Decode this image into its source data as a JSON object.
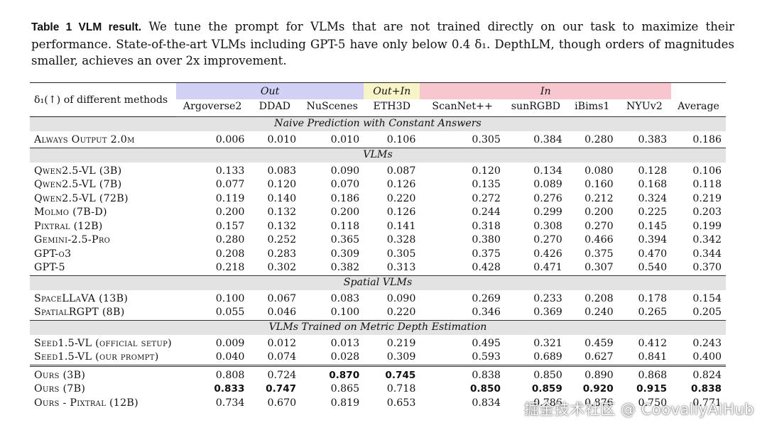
{
  "caption": {
    "label": "Table 1  VLM result.",
    "text": " We tune the prompt for VLMs that are not trained directly on our task to maximize their performance. State-of-the-art VLMs including GPT-5 have only below 0.4 δ₁. DepthLM, though orders of magnitudes smaller, achieves an over 2x improvement."
  },
  "table": {
    "corner_header": "δ₁(↑) of different methods",
    "groups": {
      "out": "Out",
      "mid": "Out+In",
      "in": "In"
    },
    "columns": [
      "Argoverse2",
      "DDAD",
      "NuScenes",
      "ETH3D",
      "ScanNet++",
      "sunRGBD",
      "iBims1",
      "NYUv2",
      "Average"
    ],
    "sections": [
      {
        "title": "Naive Prediction with Constant Answers",
        "rows": [
          {
            "name": "Always Output 2.0m",
            "values": [
              "0.006",
              "0.010",
              "0.010",
              "0.106",
              "0.305",
              "0.384",
              "0.280",
              "0.383",
              "0.186"
            ]
          }
        ]
      },
      {
        "title": "VLMs",
        "rows": [
          {
            "name": "Qwen2.5-VL (3B)",
            "values": [
              "0.133",
              "0.083",
              "0.090",
              "0.087",
              "0.120",
              "0.134",
              "0.080",
              "0.128",
              "0.106"
            ]
          },
          {
            "name": "Qwen2.5-VL (7B)",
            "values": [
              "0.077",
              "0.120",
              "0.070",
              "0.126",
              "0.135",
              "0.089",
              "0.160",
              "0.168",
              "0.118"
            ]
          },
          {
            "name": "Qwen2.5-VL (72B)",
            "values": [
              "0.119",
              "0.140",
              "0.186",
              "0.220",
              "0.272",
              "0.276",
              "0.212",
              "0.324",
              "0.219"
            ]
          },
          {
            "name": "Molmo (7B-D)",
            "values": [
              "0.200",
              "0.132",
              "0.200",
              "0.126",
              "0.244",
              "0.299",
              "0.200",
              "0.225",
              "0.203"
            ]
          },
          {
            "name": "Pixtral (12B)",
            "values": [
              "0.157",
              "0.132",
              "0.118",
              "0.141",
              "0.318",
              "0.308",
              "0.270",
              "0.145",
              "0.199"
            ]
          },
          {
            "name": "Gemini-2.5-Pro",
            "values": [
              "0.280",
              "0.252",
              "0.365",
              "0.328",
              "0.380",
              "0.270",
              "0.466",
              "0.394",
              "0.342"
            ]
          },
          {
            "name": "GPT-o3",
            "values": [
              "0.208",
              "0.283",
              "0.309",
              "0.305",
              "0.375",
              "0.426",
              "0.375",
              "0.470",
              "0.344"
            ]
          },
          {
            "name": "GPT-5",
            "values": [
              "0.218",
              "0.302",
              "0.382",
              "0.313",
              "0.428",
              "0.471",
              "0.307",
              "0.540",
              "0.370"
            ]
          }
        ]
      },
      {
        "title": "Spatial VLMs",
        "rows": [
          {
            "name": "SpaceLLaVA (13B)",
            "values": [
              "0.100",
              "0.067",
              "0.083",
              "0.090",
              "0.269",
              "0.233",
              "0.208",
              "0.178",
              "0.154"
            ]
          },
          {
            "name": "SpatialRGPT (8B)",
            "values": [
              "0.055",
              "0.046",
              "0.100",
              "0.220",
              "0.346",
              "0.369",
              "0.240",
              "0.265",
              "0.205"
            ]
          }
        ]
      },
      {
        "title": "VLMs Trained on Metric Depth Estimation",
        "rows": [
          {
            "name": "Seed1.5-VL (official setup)",
            "values": [
              "0.009",
              "0.012",
              "0.013",
              "0.219",
              "0.495",
              "0.321",
              "0.459",
              "0.412",
              "0.243"
            ]
          },
          {
            "name": "Seed1.5-VL (our prompt)",
            "values": [
              "0.040",
              "0.074",
              "0.028",
              "0.309",
              "0.593",
              "0.689",
              "0.627",
              "0.841",
              "0.400"
            ]
          }
        ]
      }
    ],
    "ours": [
      {
        "name": "Ours (3B)",
        "values": [
          "0.808",
          "0.724",
          "0.870",
          "0.745",
          "0.838",
          "0.850",
          "0.890",
          "0.868",
          "0.824"
        ],
        "bold": [
          2,
          3
        ]
      },
      {
        "name": "Ours (7B)",
        "values": [
          "0.833",
          "0.747",
          "0.865",
          "0.718",
          "0.850",
          "0.859",
          "0.920",
          "0.915",
          "0.838"
        ],
        "bold": [
          0,
          1,
          4,
          5,
          6,
          7,
          8
        ]
      },
      {
        "name": "Ours - Pixtral (12B)",
        "values": [
          "0.734",
          "0.670",
          "0.819",
          "0.653",
          "0.834",
          "0.786",
          "0.876",
          "0.750",
          "0.771"
        ],
        "bold": []
      }
    ]
  },
  "watermark": "掘金技术社区 @ CoovallyAIHub"
}
